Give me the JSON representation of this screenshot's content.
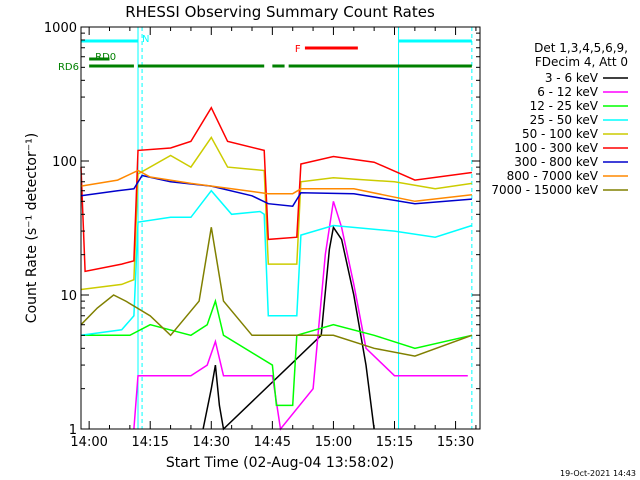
{
  "chart_data": {
    "type": "line",
    "title": "RHESSI Observing Summary Count Rates",
    "xlabel": "Start Time (02-Aug-04 13:58:02)",
    "ylabel": "Count Rate (s⁻¹ detector⁻¹)",
    "y_scale": "log",
    "ylim": [
      1,
      1000
    ],
    "xlim": [
      "13:58",
      "15:36"
    ],
    "x_ticks": [
      "14:00",
      "14:15",
      "14:30",
      "14:45",
      "15:00",
      "15:15",
      "15:30"
    ],
    "y_ticks": [
      "1",
      "10",
      "100",
      "1000"
    ],
    "legend": {
      "placement": "right",
      "header": [
        "Det 1,3,4,5,6,9,",
        "FDecim 4, Att 0"
      ]
    },
    "footer": "19-Oct-2021 14:43",
    "series": [
      {
        "name": "3 - 6 keV",
        "color": "#000000",
        "points": [
          [
            "14:28",
            1
          ],
          [
            "14:30",
            2
          ],
          [
            "14:31",
            3
          ],
          [
            "14:32",
            1.5
          ],
          [
            "14:33",
            1
          ],
          [
            "14:57",
            5
          ],
          [
            "14:59",
            22
          ],
          [
            "15:00",
            32
          ],
          [
            "15:02",
            26
          ],
          [
            "15:05",
            10
          ],
          [
            "15:08",
            3
          ],
          [
            "15:10",
            1
          ]
        ]
      },
      {
        "name": "6 - 12 keV",
        "color": "#ff00ff",
        "points": [
          [
            "14:11",
            1
          ],
          [
            "14:12",
            2.5
          ],
          [
            "14:25",
            2.5
          ],
          [
            "14:29",
            3
          ],
          [
            "14:31",
            4.5
          ],
          [
            "14:33",
            2.5
          ],
          [
            "14:45",
            2.5
          ],
          [
            "14:47",
            1
          ],
          [
            "14:55",
            2
          ],
          [
            "14:58",
            20
          ],
          [
            "15:00",
            50
          ],
          [
            "15:02",
            32
          ],
          [
            "15:05",
            12
          ],
          [
            "15:08",
            4
          ],
          [
            "15:15",
            2.5
          ],
          [
            "15:33",
            2.5
          ]
        ]
      },
      {
        "name": "12 - 25 keV",
        "color": "#00ff00",
        "points": [
          [
            "13:58",
            5
          ],
          [
            "14:10",
            5
          ],
          [
            "14:15",
            6
          ],
          [
            "14:25",
            5
          ],
          [
            "14:29",
            6
          ],
          [
            "14:31",
            9
          ],
          [
            "14:33",
            5
          ],
          [
            "14:45",
            3
          ],
          [
            "14:46",
            1.5
          ],
          [
            "14:50",
            1.5
          ],
          [
            "14:51",
            5
          ],
          [
            "15:00",
            6
          ],
          [
            "15:10",
            5
          ],
          [
            "15:20",
            4
          ],
          [
            "15:34",
            5
          ]
        ]
      },
      {
        "name": "25 - 50 keV",
        "color": "#00ffff",
        "points": [
          [
            "13:58",
            5
          ],
          [
            "14:08",
            5.5
          ],
          [
            "14:11",
            7
          ],
          [
            "14:12",
            35
          ],
          [
            "14:20",
            38
          ],
          [
            "14:25",
            38
          ],
          [
            "14:30",
            60
          ],
          [
            "14:35",
            40
          ],
          [
            "14:42",
            42
          ],
          [
            "14:43",
            40
          ],
          [
            "14:44",
            7
          ],
          [
            "14:51",
            7
          ],
          [
            "14:52",
            28
          ],
          [
            "15:00",
            33
          ],
          [
            "15:15",
            30
          ],
          [
            "15:25",
            27
          ],
          [
            "15:34",
            33
          ]
        ]
      },
      {
        "name": "50 - 100 keV",
        "color": "#cccc00",
        "points": [
          [
            "13:58",
            11
          ],
          [
            "14:08",
            12
          ],
          [
            "14:11",
            13
          ],
          [
            "14:12",
            80
          ],
          [
            "14:20",
            110
          ],
          [
            "14:25",
            90
          ],
          [
            "14:30",
            150
          ],
          [
            "14:34",
            90
          ],
          [
            "14:43",
            85
          ],
          [
            "14:44",
            17
          ],
          [
            "14:51",
            17
          ],
          [
            "14:52",
            70
          ],
          [
            "15:00",
            75
          ],
          [
            "15:15",
            70
          ],
          [
            "15:25",
            62
          ],
          [
            "15:34",
            68
          ]
        ]
      },
      {
        "name": "100 - 300 keV",
        "color": "#ff0000",
        "points": [
          [
            "13:58",
            90
          ],
          [
            "13:59",
            15
          ],
          [
            "14:08",
            17
          ],
          [
            "14:11",
            18
          ],
          [
            "14:12",
            120
          ],
          [
            "14:20",
            125
          ],
          [
            "14:25",
            140
          ],
          [
            "14:30",
            250
          ],
          [
            "14:34",
            140
          ],
          [
            "14:43",
            120
          ],
          [
            "14:44",
            26
          ],
          [
            "14:51",
            27
          ],
          [
            "14:52",
            95
          ],
          [
            "15:00",
            108
          ],
          [
            "15:10",
            98
          ],
          [
            "15:20",
            72
          ],
          [
            "15:34",
            82
          ]
        ]
      },
      {
        "name": "300 - 800 keV",
        "color": "#0000cc",
        "points": [
          [
            "13:58",
            55
          ],
          [
            "14:07",
            60
          ],
          [
            "14:11",
            62
          ],
          [
            "14:13",
            78
          ],
          [
            "14:20",
            70
          ],
          [
            "14:30",
            65
          ],
          [
            "14:40",
            55
          ],
          [
            "14:44",
            48
          ],
          [
            "14:50",
            46
          ],
          [
            "14:52",
            58
          ],
          [
            "15:05",
            57
          ],
          [
            "15:20",
            48
          ],
          [
            "15:34",
            52
          ]
        ]
      },
      {
        "name": "800 - 7000 keV",
        "color": "#ff8800",
        "points": [
          [
            "13:58",
            65
          ],
          [
            "14:07",
            72
          ],
          [
            "14:12",
            85
          ],
          [
            "14:15",
            76
          ],
          [
            "14:25",
            68
          ],
          [
            "14:35",
            62
          ],
          [
            "14:44",
            57
          ],
          [
            "14:50",
            57
          ],
          [
            "14:52",
            62
          ],
          [
            "15:05",
            62
          ],
          [
            "15:20",
            50
          ],
          [
            "15:34",
            56
          ]
        ]
      },
      {
        "name": "7000 - 15000 keV",
        "color": "#808000",
        "points": [
          [
            "13:58",
            6
          ],
          [
            "14:02",
            8
          ],
          [
            "14:06",
            10
          ],
          [
            "14:09",
            9
          ],
          [
            "14:15",
            7
          ],
          [
            "14:20",
            5
          ],
          [
            "14:27",
            9
          ],
          [
            "14:30",
            32
          ],
          [
            "14:33",
            9
          ],
          [
            "14:40",
            5
          ],
          [
            "14:50",
            5
          ],
          [
            "15:00",
            5
          ],
          [
            "15:10",
            4
          ],
          [
            "15:20",
            3.5
          ],
          [
            "15:34",
            5
          ]
        ]
      }
    ],
    "annotations": [
      {
        "label": "N",
        "color": "#00ffff",
        "segments": [
          [
            "13:58",
            "14:12"
          ],
          [
            "15:16",
            "15:34"
          ]
        ],
        "level": "top"
      },
      {
        "label": "F",
        "color": "#ff0000",
        "segments": [
          [
            "14:53",
            "15:06"
          ]
        ],
        "level": "flag"
      },
      {
        "label": "RD0",
        "color": "#008000",
        "segments": [
          [
            "14:00",
            "14:05"
          ]
        ],
        "level": "rd0"
      },
      {
        "label": "RD6",
        "color": "#008000",
        "segments": [
          [
            "14:00",
            "14:11"
          ],
          [
            "14:12",
            "14:43"
          ],
          [
            "14:45",
            "14:48"
          ],
          [
            "14:49",
            "15:34"
          ]
        ],
        "level": "rd6"
      }
    ],
    "vertical_markers": [
      {
        "time": "13:58",
        "color": "#00ffff",
        "style": "solid"
      },
      {
        "time": "14:12",
        "color": "#00ffff",
        "style": "solid"
      },
      {
        "time": "14:13",
        "color": "#00ffff",
        "style": "dashed"
      },
      {
        "time": "15:16",
        "color": "#00ffff",
        "style": "solid"
      },
      {
        "time": "15:34",
        "color": "#00ffff",
        "style": "dashed"
      }
    ]
  }
}
